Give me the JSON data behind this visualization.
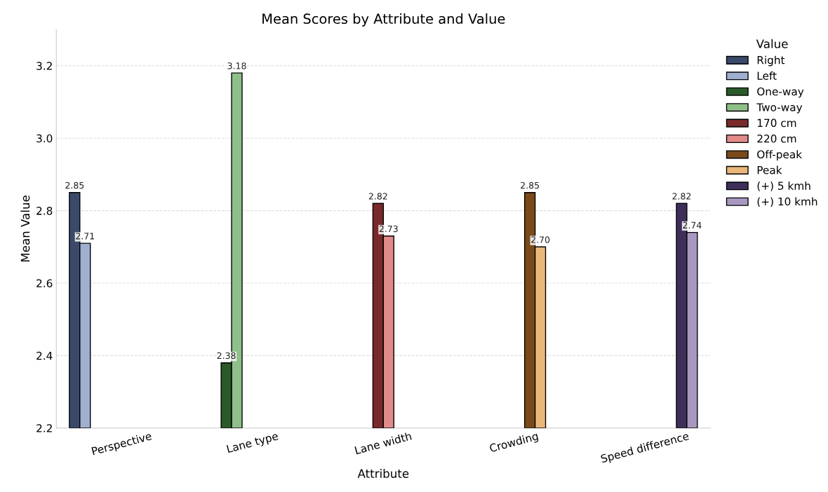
{
  "chart_data": {
    "type": "bar",
    "title": "Mean Scores by Attribute and Value",
    "xlabel": "Attribute",
    "ylabel": "Mean Value",
    "legend_title": "Value",
    "categories": [
      "Perspective",
      "Lane type",
      "Lane width",
      "Crowding",
      "Speed difference"
    ],
    "series": [
      {
        "name": "Right",
        "color": "#3b4a6b",
        "values": [
          2.85,
          null,
          null,
          null,
          null
        ],
        "value_labels": [
          "2.85",
          null,
          null,
          null,
          null
        ]
      },
      {
        "name": "Left",
        "color": "#9fb0cf",
        "values": [
          2.71,
          null,
          null,
          null,
          null
        ],
        "value_labels": [
          "2.71",
          null,
          null,
          null,
          null
        ]
      },
      {
        "name": "One-way",
        "color": "#2a5a2a",
        "values": [
          null,
          2.38,
          null,
          null,
          null
        ],
        "value_labels": [
          null,
          "2.38",
          null,
          null,
          null
        ]
      },
      {
        "name": "Two-way",
        "color": "#8fc08a",
        "values": [
          null,
          3.18,
          null,
          null,
          null
        ],
        "value_labels": [
          null,
          "3.18",
          null,
          null,
          null
        ]
      },
      {
        "name": "170 cm",
        "color": "#7a2a2a",
        "values": [
          null,
          null,
          2.82,
          null,
          null
        ],
        "value_labels": [
          null,
          null,
          "2.82",
          null,
          null
        ]
      },
      {
        "name": "220 cm",
        "color": "#e08a8a",
        "values": [
          null,
          null,
          2.73,
          null,
          null
        ],
        "value_labels": [
          null,
          null,
          "2.73",
          null,
          null
        ]
      },
      {
        "name": "Off-peak",
        "color": "#7a4a1a",
        "values": [
          null,
          null,
          null,
          2.85,
          null
        ],
        "value_labels": [
          null,
          null,
          null,
          "2.85",
          null
        ]
      },
      {
        "name": "Peak",
        "color": "#eab67a",
        "values": [
          null,
          null,
          null,
          2.7,
          null
        ],
        "value_labels": [
          null,
          null,
          null,
          "2.70",
          null
        ]
      },
      {
        "name": "(+) 5 kmh",
        "color": "#3e2f5a",
        "values": [
          null,
          null,
          null,
          null,
          2.82
        ],
        "value_labels": [
          null,
          null,
          null,
          null,
          "2.82"
        ]
      },
      {
        "name": "(+) 10 kmh",
        "color": "#a898c0",
        "values": [
          null,
          null,
          null,
          null,
          2.74
        ],
        "value_labels": [
          null,
          null,
          null,
          null,
          "2.74"
        ]
      }
    ],
    "ylim": [
      2.2,
      3.3
    ],
    "yticks": [
      2.2,
      2.4,
      2.6,
      2.8,
      {
        "value": 3.0,
        "label": "3.0"
      },
      3.2
    ],
    "grid": "y",
    "legend": "right"
  }
}
